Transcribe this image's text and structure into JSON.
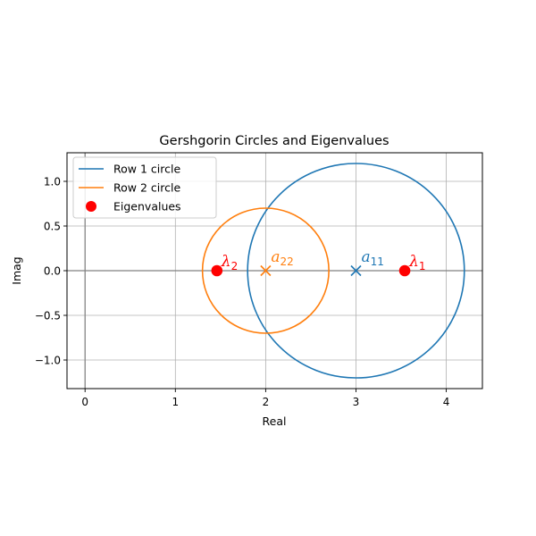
{
  "chart_data": {
    "type": "scatter",
    "title": "Gershgorin Circles and Eigenvalues",
    "xlabel": "Real",
    "ylabel": "Imag",
    "xlim": [
      -0.2,
      4.4
    ],
    "ylim": [
      -1.32,
      1.32
    ],
    "xticks": [
      0,
      1,
      2,
      3,
      4
    ],
    "xtick_labels": [
      "0",
      "1",
      "2",
      "3",
      "4"
    ],
    "yticks": [
      -1.0,
      -0.5,
      0.0,
      0.5,
      1.0
    ],
    "ytick_labels": [
      "−1.0",
      "−0.5",
      "0.0",
      "0.5",
      "1.0"
    ],
    "grid": true,
    "legend_position": "top-left",
    "circles": [
      {
        "name": "Row 1 circle",
        "center": [
          3,
          0
        ],
        "radius": 1.2,
        "color": "#1f77b4"
      },
      {
        "name": "Row 2 circle",
        "center": [
          2,
          0
        ],
        "radius": 0.7,
        "color": "#ff7f0e"
      }
    ],
    "diagonal_markers": [
      {
        "x": 3,
        "y": 0,
        "color": "#1f77b4",
        "label_main": "a",
        "label_sub": "11"
      },
      {
        "x": 2,
        "y": 0,
        "color": "#ff7f0e",
        "label_main": "a",
        "label_sub": "22"
      }
    ],
    "eigenvalues": {
      "name": "Eigenvalues",
      "color": "#ff0000",
      "points": [
        {
          "x": 3.54,
          "y": 0,
          "label_main": "λ",
          "label_sub": "1"
        },
        {
          "x": 1.46,
          "y": 0,
          "label_main": "λ",
          "label_sub": "2"
        }
      ]
    }
  }
}
